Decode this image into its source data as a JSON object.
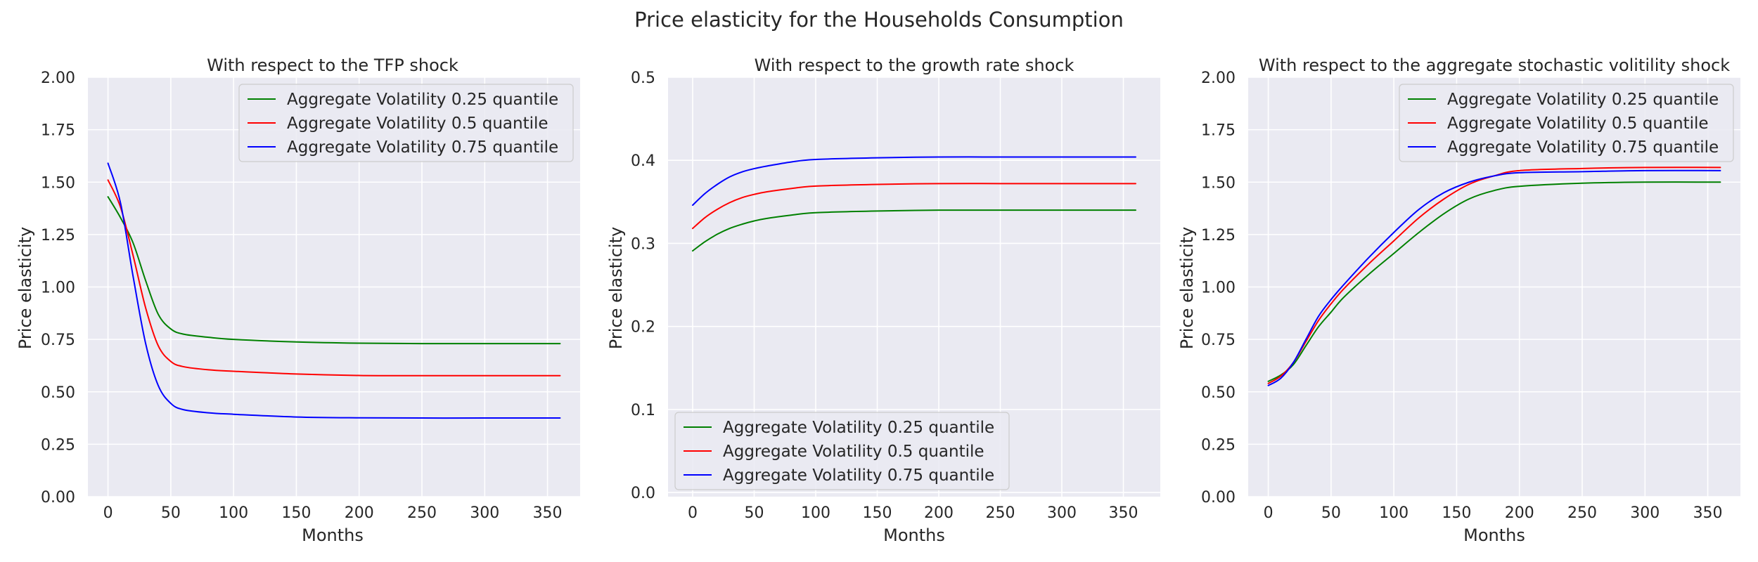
{
  "figure": {
    "title": "Price elasticity for the Households Consumption"
  },
  "chart_data": [
    {
      "type": "line",
      "title": "With respect to the TFP shock",
      "xlabel": "Months",
      "ylabel": "Price elasticity",
      "xlim": [
        -16,
        376
      ],
      "ylim": [
        0.0,
        2.0
      ],
      "xticks": [
        0,
        50,
        100,
        150,
        200,
        250,
        300,
        350
      ],
      "yticks": [
        0.0,
        0.25,
        0.5,
        0.75,
        1.0,
        1.25,
        1.5,
        1.75,
        2.0
      ],
      "ytick_labels": [
        "0.00",
        "0.25",
        "0.50",
        "0.75",
        "1.00",
        "1.25",
        "1.50",
        "1.75",
        "2.00"
      ],
      "grid": true,
      "legend": "top-right",
      "x": [
        0,
        10,
        20,
        30,
        40,
        50,
        60,
        80,
        100,
        150,
        200,
        250,
        300,
        360
      ],
      "series": [
        {
          "name": "Aggregate Volatility 0.25 quantile",
          "color": "#008000",
          "values": [
            1.43,
            1.33,
            1.21,
            1.03,
            0.87,
            0.8,
            0.775,
            0.76,
            0.75,
            0.738,
            0.732,
            0.73,
            0.73,
            0.73
          ]
        },
        {
          "name": "Aggregate Volatility 0.5 quantile",
          "color": "#ff0000",
          "values": [
            1.51,
            1.38,
            1.15,
            0.9,
            0.72,
            0.645,
            0.62,
            0.605,
            0.598,
            0.585,
            0.578,
            0.577,
            0.577,
            0.577
          ]
        },
        {
          "name": "Aggregate Volatility 0.75 quantile",
          "color": "#0000ff",
          "values": [
            1.59,
            1.4,
            1.05,
            0.73,
            0.53,
            0.445,
            0.415,
            0.4,
            0.393,
            0.38,
            0.376,
            0.375,
            0.375,
            0.375
          ]
        }
      ]
    },
    {
      "type": "line",
      "title": "With respect to the growth rate shock",
      "xlabel": "Months",
      "ylabel": "Price elasticity",
      "xlim": [
        -20,
        380
      ],
      "ylim": [
        -0.005,
        0.5
      ],
      "xticks": [
        0,
        50,
        100,
        150,
        200,
        250,
        300,
        350
      ],
      "yticks": [
        0.0,
        0.1,
        0.2,
        0.3,
        0.4,
        0.5
      ],
      "ytick_labels": [
        "0.0",
        "0.1",
        "0.2",
        "0.3",
        "0.4",
        "0.5"
      ],
      "grid": true,
      "legend": "bottom-left",
      "x": [
        0,
        10,
        20,
        30,
        40,
        50,
        60,
        80,
        100,
        150,
        200,
        250,
        300,
        360
      ],
      "series": [
        {
          "name": "Aggregate Volatility 0.25 quantile",
          "color": "#008000",
          "values": [
            0.291,
            0.302,
            0.311,
            0.318,
            0.323,
            0.327,
            0.33,
            0.334,
            0.337,
            0.339,
            0.34,
            0.34,
            0.34,
            0.34
          ]
        },
        {
          "name": "Aggregate Volatility 0.5 quantile",
          "color": "#ff0000",
          "values": [
            0.318,
            0.331,
            0.341,
            0.349,
            0.355,
            0.359,
            0.362,
            0.366,
            0.369,
            0.371,
            0.372,
            0.372,
            0.372,
            0.372
          ]
        },
        {
          "name": "Aggregate Volatility 0.75 quantile",
          "color": "#0000ff",
          "values": [
            0.346,
            0.36,
            0.371,
            0.38,
            0.386,
            0.39,
            0.393,
            0.398,
            0.401,
            0.403,
            0.404,
            0.404,
            0.404,
            0.404
          ]
        }
      ]
    },
    {
      "type": "line",
      "title": "With respect to the aggregate stochastic volitility shock",
      "xlabel": "Months",
      "ylabel": "Price elasticity",
      "xlim": [
        -16,
        376
      ],
      "ylim": [
        0.0,
        2.0
      ],
      "xticks": [
        0,
        50,
        100,
        150,
        200,
        250,
        300,
        350
      ],
      "yticks": [
        0.0,
        0.25,
        0.5,
        0.75,
        1.0,
        1.25,
        1.5,
        1.75,
        2.0
      ],
      "ytick_labels": [
        "0.00",
        "0.25",
        "0.50",
        "0.75",
        "1.00",
        "1.25",
        "1.50",
        "1.75",
        "2.00"
      ],
      "grid": true,
      "legend": "top-right",
      "x": [
        0,
        10,
        20,
        30,
        40,
        50,
        60,
        80,
        100,
        120,
        140,
        160,
        180,
        200,
        250,
        300,
        360
      ],
      "series": [
        {
          "name": "Aggregate Volatility 0.25 quantile",
          "color": "#008000",
          "values": [
            0.55,
            0.58,
            0.63,
            0.72,
            0.81,
            0.88,
            0.95,
            1.06,
            1.16,
            1.26,
            1.35,
            1.42,
            1.46,
            1.48,
            1.495,
            1.5,
            1.5
          ]
        },
        {
          "name": "Aggregate Volatility 0.5 quantile",
          "color": "#ff0000",
          "values": [
            0.54,
            0.575,
            0.64,
            0.74,
            0.84,
            0.92,
            0.99,
            1.11,
            1.22,
            1.33,
            1.42,
            1.49,
            1.53,
            1.555,
            1.565,
            1.57,
            1.57
          ]
        },
        {
          "name": "Aggregate Volatility 0.75 quantile",
          "color": "#0000ff",
          "values": [
            0.53,
            0.565,
            0.64,
            0.75,
            0.86,
            0.94,
            1.01,
            1.14,
            1.26,
            1.37,
            1.45,
            1.5,
            1.53,
            1.545,
            1.55,
            1.555,
            1.555
          ]
        }
      ]
    }
  ]
}
